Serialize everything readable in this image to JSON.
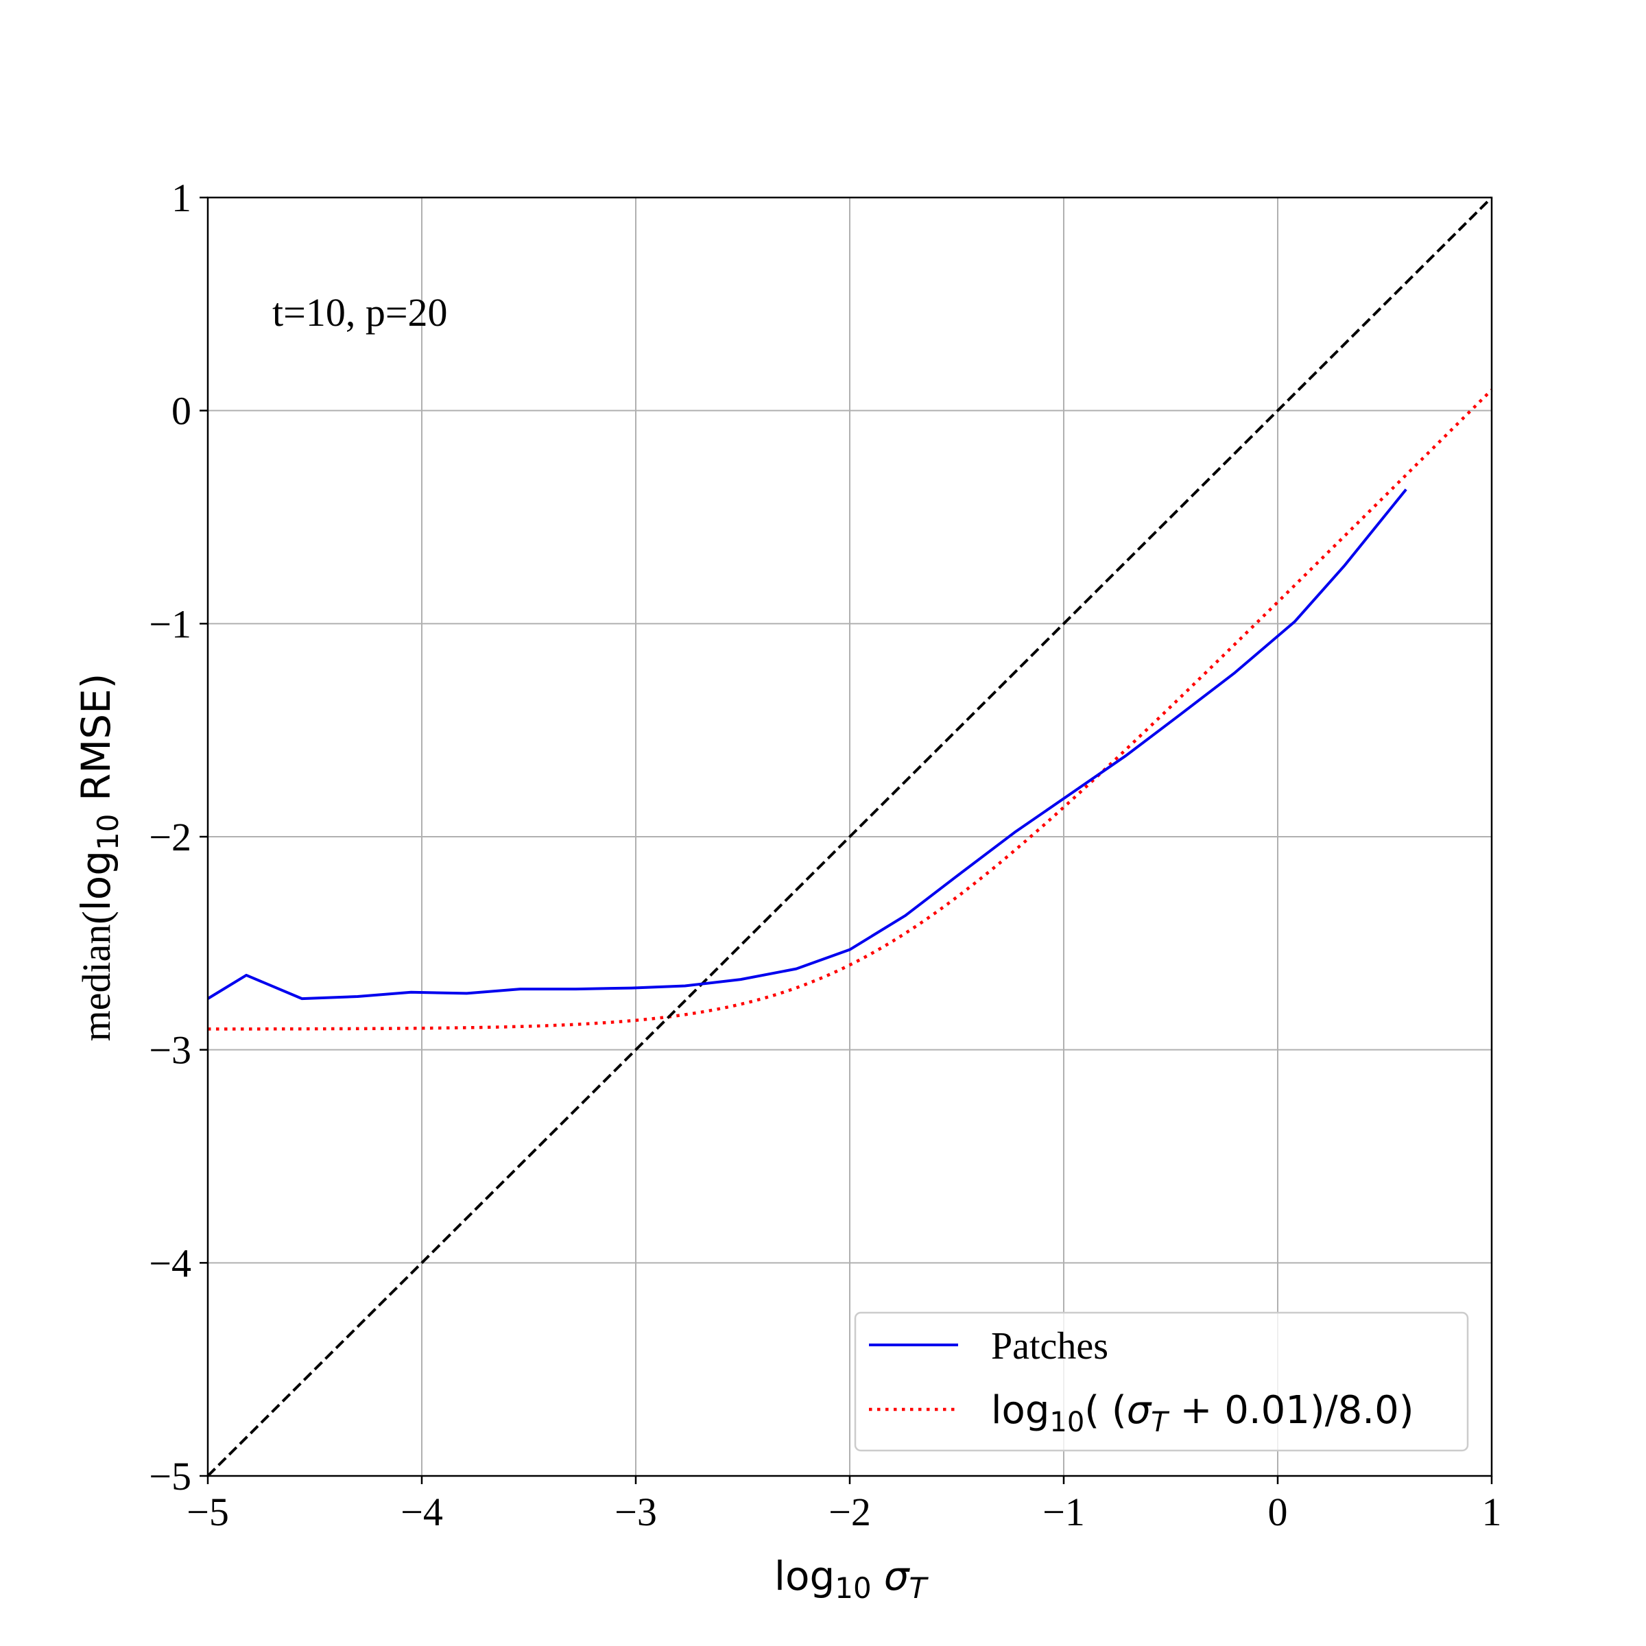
{
  "chart_data": {
    "type": "line",
    "annotation": "t=10, p=20",
    "xlabel": {
      "main": "log",
      "sub": "10",
      "sigma": "σ",
      "sigma_sub": "T"
    },
    "ylabel": {
      "prefix": "median(",
      "log": "log",
      "sub": "10",
      "rest": " RMSE)"
    },
    "xlim": [
      -5,
      1
    ],
    "ylim": [
      -5,
      1
    ],
    "xticks": [
      -5,
      -4,
      -3,
      -2,
      -1,
      0,
      1
    ],
    "yticks": [
      -5,
      -4,
      -3,
      -2,
      -1,
      0,
      1
    ],
    "xtick_labels": [
      "−5",
      "−4",
      "−3",
      "−2",
      "−1",
      "0",
      "1"
    ],
    "ytick_labels": [
      "−5",
      "−4",
      "−3",
      "−2",
      "−1",
      "0",
      "1"
    ],
    "grid": true,
    "legend_position": "lower-right",
    "series": [
      {
        "name": "Patches",
        "color": "#0000ee",
        "style": "solid",
        "x": [
          -5.0,
          -4.82,
          -4.56,
          -4.3,
          -4.05,
          -3.79,
          -3.54,
          -3.28,
          -3.02,
          -2.77,
          -2.51,
          -2.25,
          -2.0,
          -1.74,
          -1.48,
          -1.23,
          -0.97,
          -0.71,
          -0.46,
          -0.2,
          0.08,
          0.31,
          0.6
        ],
        "y": [
          -2.76,
          -2.65,
          -2.76,
          -2.75,
          -2.73,
          -2.735,
          -2.715,
          -2.715,
          -2.71,
          -2.7,
          -2.67,
          -2.62,
          -2.53,
          -2.37,
          -2.17,
          -1.98,
          -1.8,
          -1.62,
          -1.43,
          -1.23,
          -0.99,
          -0.73,
          -0.37
        ]
      },
      {
        "name": "log10 ((σT + 0.01)/8.0)",
        "legend": {
          "main": "log",
          "sub": "10",
          "rest_a": "( (",
          "sigma": "σ",
          "sigma_sub": "T",
          "rest_b": " + 0.01)/8.0)"
        },
        "color": "#ff0000",
        "style": "dotted",
        "formula": {
          "offset": 0.01,
          "divisor": 8.0
        }
      },
      {
        "name": "",
        "color": "#000000",
        "style": "dashed",
        "x": [
          -5,
          1
        ],
        "y": [
          -5,
          1
        ]
      }
    ]
  }
}
